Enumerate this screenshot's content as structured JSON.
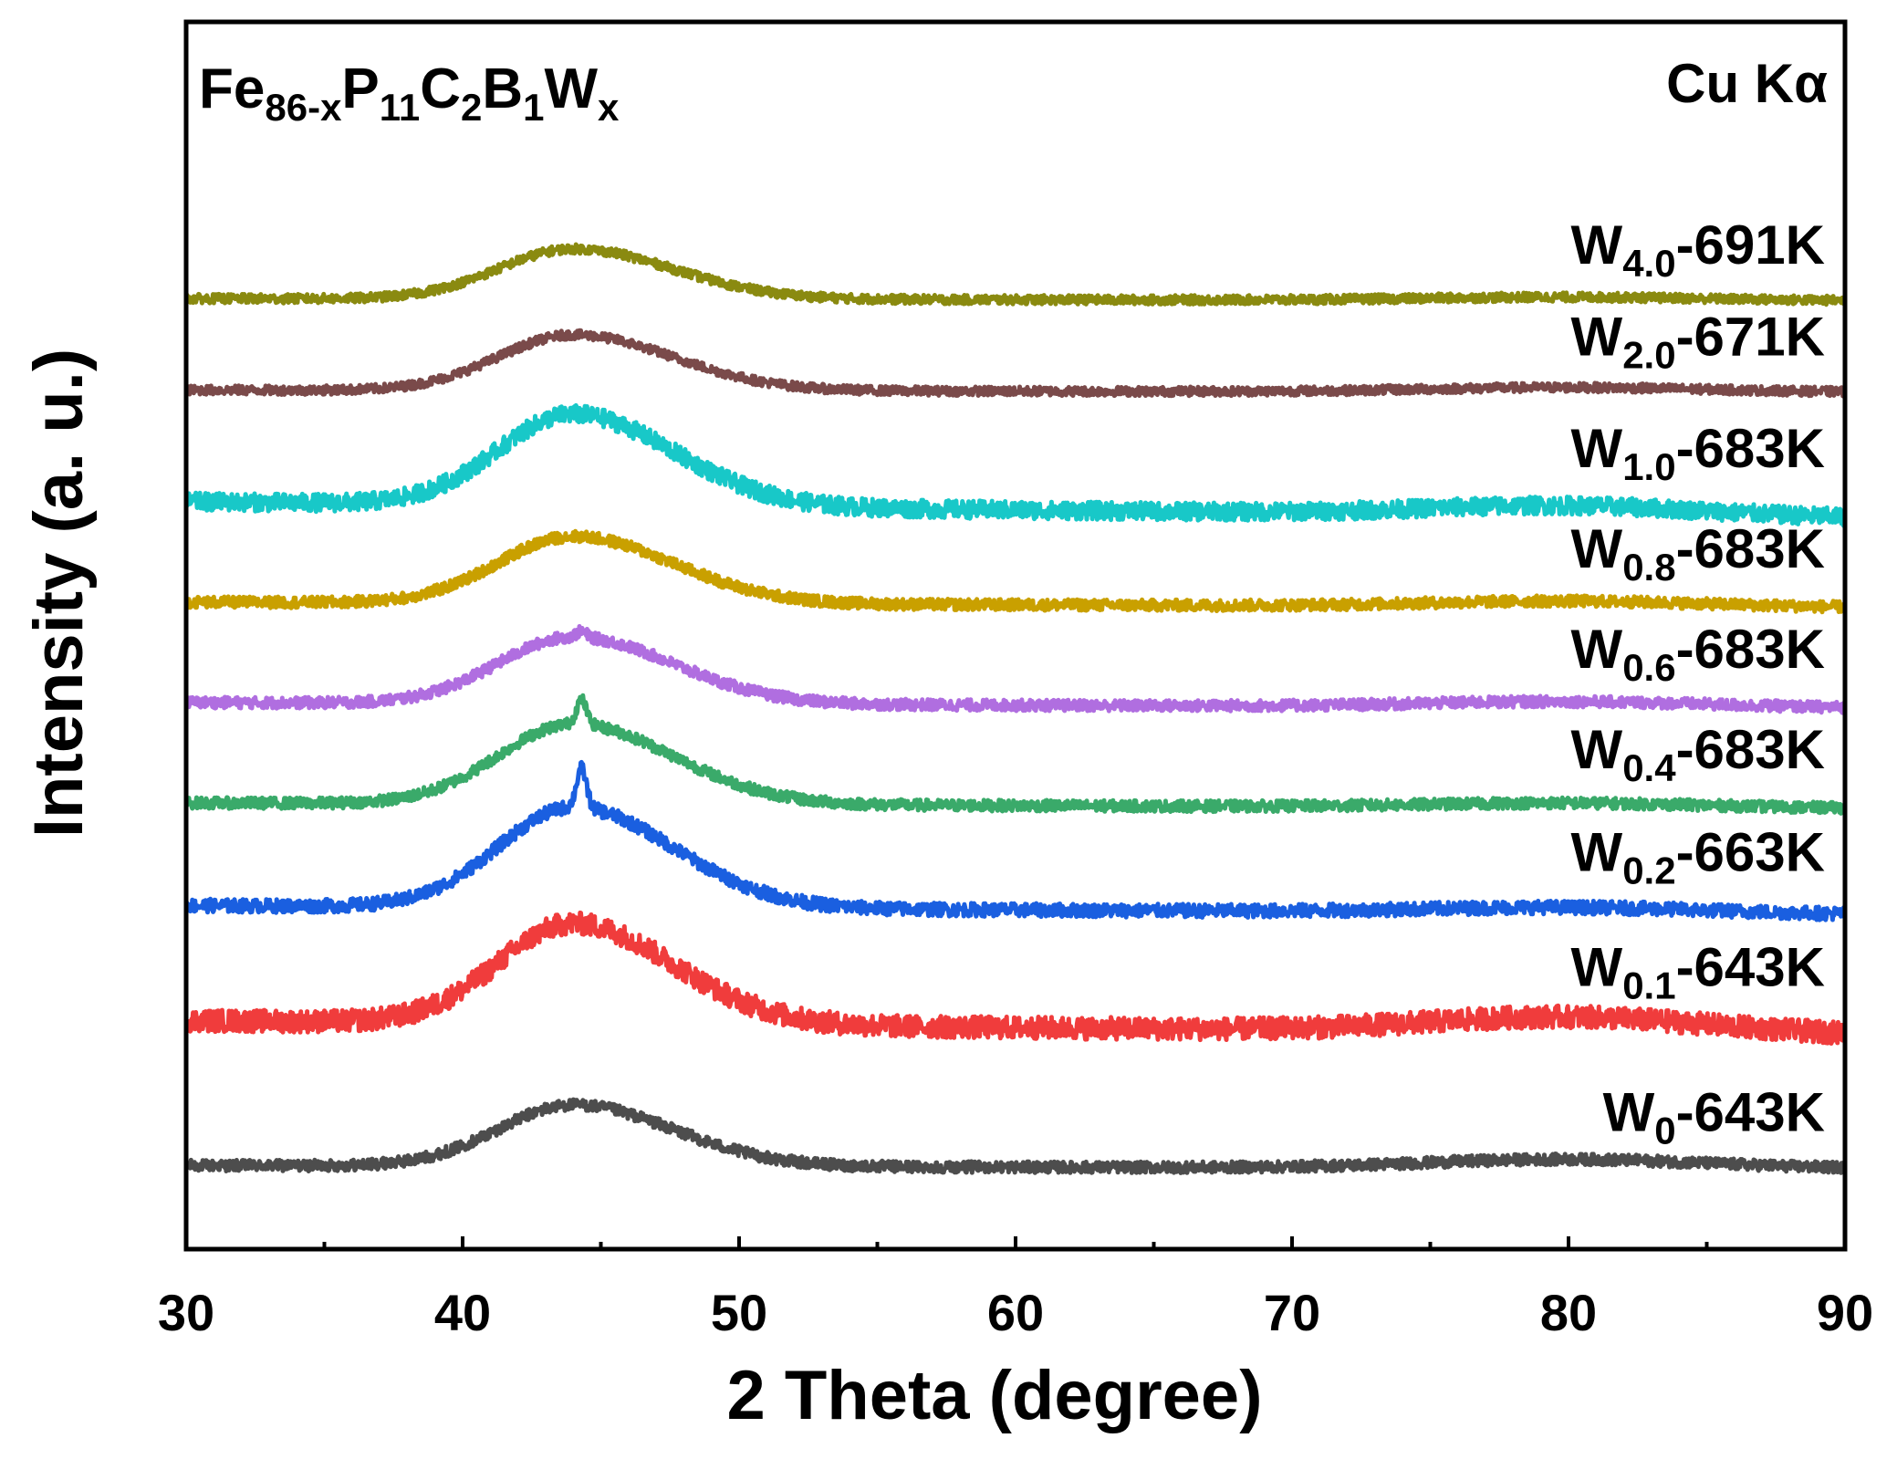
{
  "chart_data": {
    "type": "line",
    "title": "",
    "composition": {
      "base": "Fe",
      "base_sub": "86-x",
      "p": "P",
      "p_sub": "11",
      "c": "C",
      "c_sub": "2",
      "b": "B",
      "b_sub": "1",
      "w": "W",
      "w_sub": "x"
    },
    "radiation": "Cu Kα",
    "xlabel": "2 Theta (degree)",
    "ylabel": "Intensity (a. u.)",
    "xlim": [
      30,
      90
    ],
    "ylim": [
      0,
      11
    ],
    "xticks": [
      "30",
      "40",
      "50",
      "60",
      "70",
      "80",
      "90"
    ],
    "grid": false,
    "legend_placement": "right, beside each curve",
    "x_range": [
      30,
      90
    ],
    "peak_position": 44,
    "series": [
      {
        "name": "W0-643K",
        "label_main": "W",
        "label_sub": "0",
        "label_rest": "-643K",
        "color": "#4d4d4d",
        "base": 0.75,
        "end": 0.72,
        "peak": 0.55,
        "noise": 0.05,
        "sharp": 0.0,
        "broad": 0.08
      },
      {
        "name": "W0.1-643K",
        "label_main": "W",
        "label_sub": "0.1",
        "label_rest": "-643K",
        "color": "#f03c3c",
        "base": 2.05,
        "end": 1.92,
        "peak": 0.9,
        "noise": 0.1,
        "sharp": 0.0,
        "broad": 0.14
      },
      {
        "name": "W0.2-663K",
        "label_main": "W",
        "label_sub": "0.2",
        "label_rest": "-663K",
        "color": "#1a5fe0",
        "base": 3.08,
        "end": 3.0,
        "peak": 0.9,
        "noise": 0.06,
        "sharp": 0.35,
        "broad": 0.05
      },
      {
        "name": "W0.4-683K",
        "label_main": "W",
        "label_sub": "0.4",
        "label_rest": "-683K",
        "color": "#3aaa6a",
        "base": 4.0,
        "end": 3.95,
        "peak": 0.72,
        "noise": 0.05,
        "sharp": 0.22,
        "broad": 0.04
      },
      {
        "name": "W0.6-683K",
        "label_main": "W",
        "label_sub": "0.6",
        "label_rest": "-683K",
        "color": "#b06ee0",
        "base": 4.9,
        "end": 4.85,
        "peak": 0.6,
        "noise": 0.05,
        "sharp": 0.05,
        "broad": 0.05
      },
      {
        "name": "W0.8-683K",
        "label_main": "W",
        "label_sub": "0.8",
        "label_rest": "-683K",
        "color": "#c9a000",
        "base": 5.8,
        "end": 5.75,
        "peak": 0.6,
        "noise": 0.05,
        "sharp": 0.0,
        "broad": 0.05
      },
      {
        "name": "W1.0-683K",
        "label_main": "W",
        "label_sub": "1.0",
        "label_rest": "-683K",
        "color": "#18c8c8",
        "base": 6.7,
        "end": 6.55,
        "peak": 0.82,
        "noise": 0.08,
        "sharp": 0.0,
        "broad": 0.09
      },
      {
        "name": "W2.0-671K",
        "label_main": "W",
        "label_sub": "2.0",
        "label_rest": "-671K",
        "color": "#7a4a4a",
        "base": 7.7,
        "end": 7.68,
        "peak": 0.5,
        "noise": 0.04,
        "sharp": 0.0,
        "broad": 0.04
      },
      {
        "name": "W4.0-691K",
        "label_main": "W",
        "label_sub": "4.0",
        "label_rest": "-691K",
        "color": "#8a8a10",
        "base": 8.52,
        "end": 8.5,
        "peak": 0.45,
        "noise": 0.04,
        "sharp": 0.0,
        "broad": 0.03
      }
    ]
  }
}
